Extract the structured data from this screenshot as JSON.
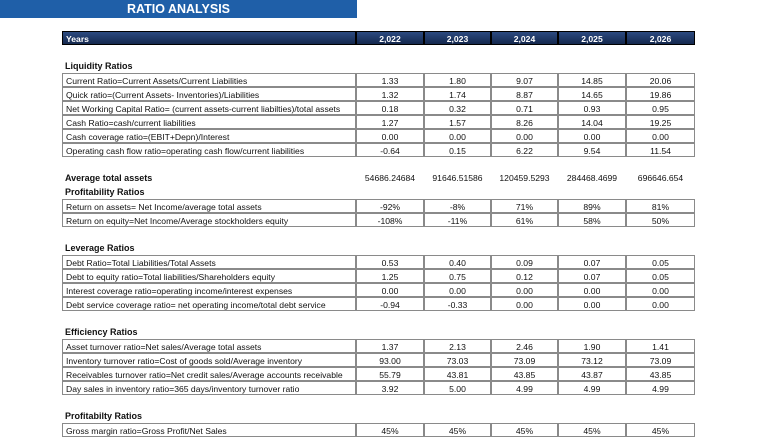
{
  "title": "RATIO ANALYSIS",
  "header": {
    "label": "Years",
    "years": [
      "2,022",
      "2,023",
      "2,024",
      "2,025",
      "2,026"
    ]
  },
  "sections": [
    {
      "title": "Liquidity Ratios",
      "rows": [
        {
          "label": "Current Ratio=Current Assets/Current Liabilities",
          "values": [
            "1.33",
            "1.80",
            "9.07",
            "14.85",
            "20.06"
          ]
        },
        {
          "label": "Quick ratio=(Current Assets- Inventories)/Liabilities",
          "values": [
            "1.32",
            "1.74",
            "8.87",
            "14.65",
            "19.86"
          ]
        },
        {
          "label": "Net Working Capital Ratio= (current assets-current liabilties)/total assets",
          "values": [
            "0.18",
            "0.32",
            "0.71",
            "0.93",
            "0.95"
          ]
        },
        {
          "label": "Cash Ratio=cash/current liabilities",
          "values": [
            "1.27",
            "1.57",
            "8.26",
            "14.04",
            "19.25"
          ]
        },
        {
          "label": "Cash coverage ratio=(EBIT+Depn)/Interest",
          "values": [
            "0.00",
            "0.00",
            "0.00",
            "0.00",
            "0.00"
          ]
        },
        {
          "label": "Operating cash flow ratio=operating cash flow/current liabilities",
          "values": [
            "-0.64",
            "0.15",
            "6.22",
            "9.54",
            "11.54"
          ]
        }
      ]
    },
    {
      "lead": {
        "label": "Average total assets",
        "values": [
          "54686.24684",
          "91646.51586",
          "120459.5293",
          "284468.4699",
          "696646.654"
        ]
      },
      "title": "Profitability Ratios",
      "rows": [
        {
          "label": "Return on assets= Net Income/average total assets",
          "values": [
            "-92%",
            "-8%",
            "71%",
            "89%",
            "81%"
          ]
        },
        {
          "label": "Return on equity=Net Income/Average stockholders equity",
          "values": [
            "-108%",
            "-11%",
            "61%",
            "58%",
            "50%"
          ]
        }
      ]
    },
    {
      "title": "Leverage Ratios",
      "rows": [
        {
          "label": "Debt Ratio=Total Liabilities/Total Assets",
          "values": [
            "0.53",
            "0.40",
            "0.09",
            "0.07",
            "0.05"
          ]
        },
        {
          "label": "Debt to equity ratio=Total liabilities/Shareholders equity",
          "values": [
            "1.25",
            "0.75",
            "0.12",
            "0.07",
            "0.05"
          ]
        },
        {
          "label": "Interest coverage ratio=operating income/interest expenses",
          "values": [
            "0.00",
            "0.00",
            "0.00",
            "0.00",
            "0.00"
          ]
        },
        {
          "label": "Debt service coverage ratio= net operating income/total debt service",
          "values": [
            "-0.94",
            "-0.33",
            "0.00",
            "0.00",
            "0.00"
          ]
        }
      ]
    },
    {
      "title": "Efficiency Ratios",
      "rows": [
        {
          "label": "Asset turnover ratio=Net sales/Average total assets",
          "values": [
            "1.37",
            "2.13",
            "2.46",
            "1.90",
            "1.41"
          ]
        },
        {
          "label": "Inventory turnover ratio=Cost of goods sold/Average inventory",
          "values": [
            "93.00",
            "73.03",
            "73.09",
            "73.12",
            "73.09"
          ]
        },
        {
          "label": "Receivables turnover ratio=Net credit sales/Average accounts receivable",
          "values": [
            "55.79",
            "43.81",
            "43.85",
            "43.87",
            "43.85"
          ]
        },
        {
          "label": "Day sales in inventory ratio=365 days/inventory turnover ratio",
          "values": [
            "3.92",
            "5.00",
            "4.99",
            "4.99",
            "4.99"
          ]
        }
      ]
    },
    {
      "title": "Profitabilty Ratios",
      "rows": [
        {
          "label": "Gross margin ratio=Gross Profit/Net Sales",
          "values": [
            "45%",
            "45%",
            "45%",
            "45%",
            "45%"
          ]
        }
      ]
    }
  ]
}
